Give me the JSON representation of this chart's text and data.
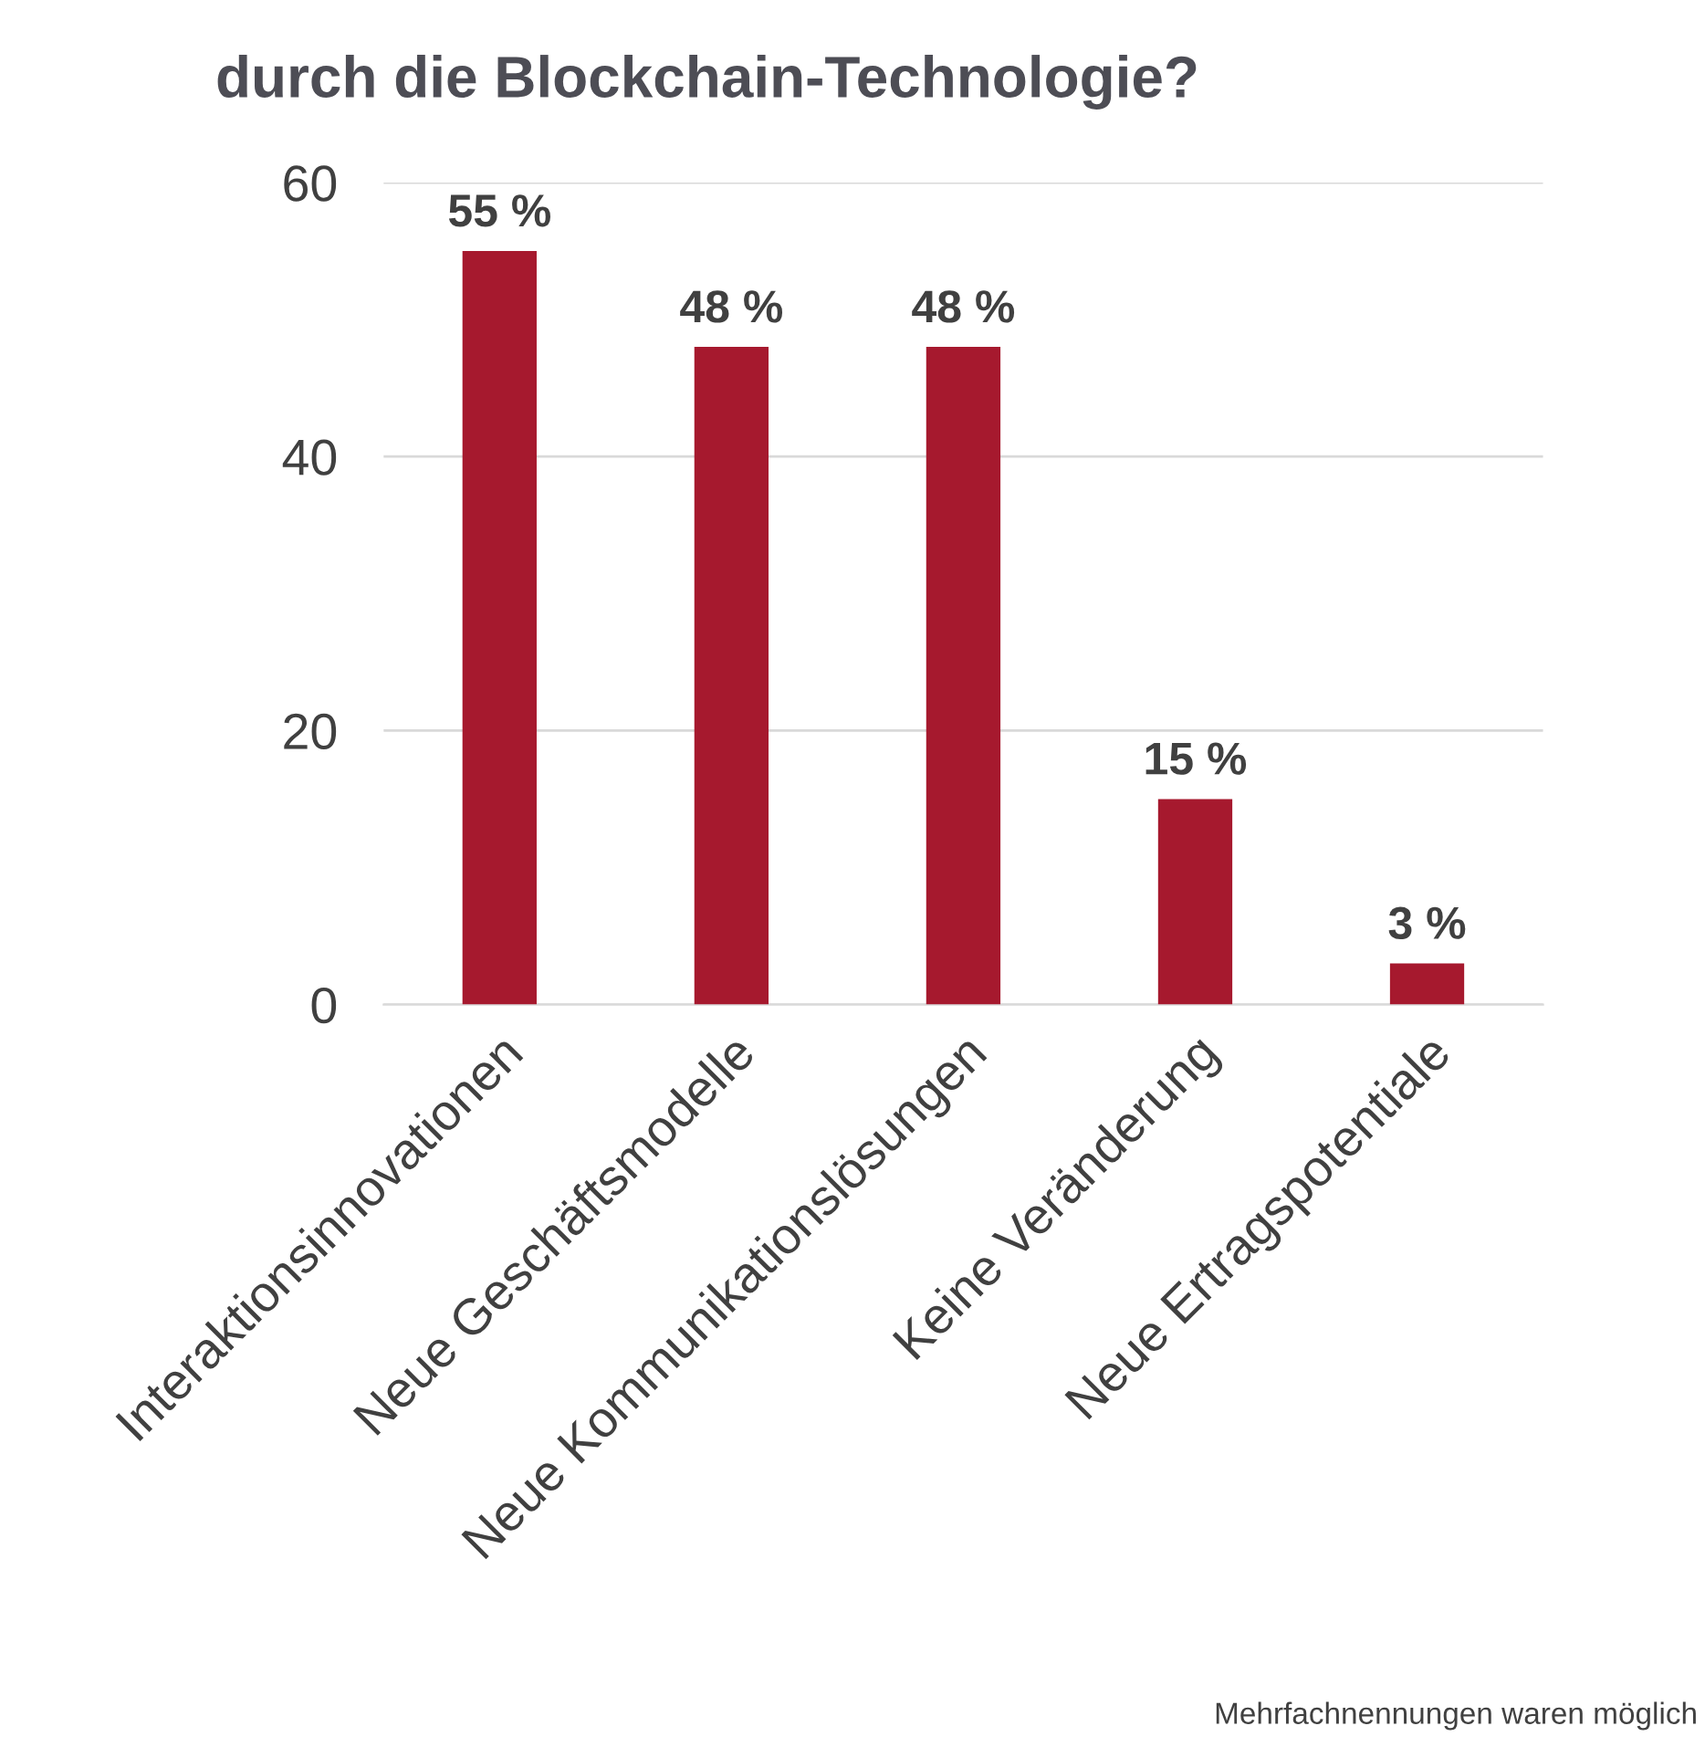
{
  "chart_data": {
    "type": "bar",
    "title": "durch die Blockchain-Technologie?",
    "categories": [
      "Interaktionsinnovationen",
      "Neue Geschäftsmodelle",
      "Neue Kommunikationslösungen",
      "Keine Veränderung",
      "Neue Ertragspotentiale"
    ],
    "values": [
      55,
      48,
      48,
      15,
      3
    ],
    "color": "#a6192e",
    "value_labels": [
      "55 %",
      "48 %",
      "48 %",
      "15 %",
      "3 %"
    ],
    "ylim": [
      0,
      60
    ],
    "yticks": [
      0,
      20,
      40,
      60
    ],
    "grid": "y",
    "annotations": [
      "Mehrfachnennungen waren möglich"
    ]
  }
}
